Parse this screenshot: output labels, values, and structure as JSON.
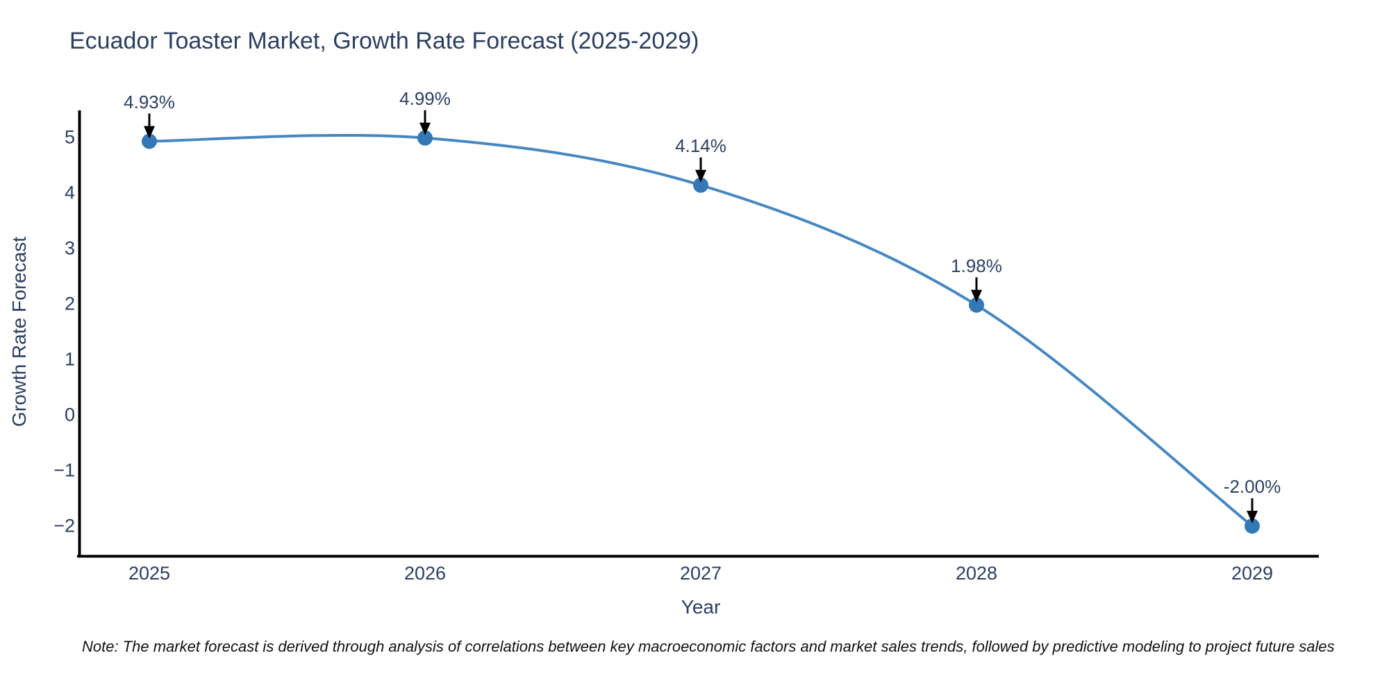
{
  "header": {
    "title": "Ecuador Toaster Market, Growth Rate Forecast (2025-2029)"
  },
  "footer": {
    "note": "Note: The market forecast is derived through analysis of correlations between key macroeconomic factors and market sales trends, followed by predictive modeling to project future sales"
  },
  "chart_data": {
    "type": "line",
    "title": "Ecuador Toaster Market, Growth Rate Forecast (2025-2029)",
    "xlabel": "Year",
    "ylabel": "Growth Rate Forecast",
    "x": [
      2025,
      2026,
      2027,
      2028,
      2029
    ],
    "series": [
      {
        "name": "Growth Rate Forecast",
        "values": [
          4.93,
          4.99,
          4.14,
          1.98,
          -2.0
        ]
      }
    ],
    "point_labels": [
      "4.93%",
      "4.99%",
      "4.14%",
      "1.98%",
      "-2.00%"
    ],
    "xtick_labels": [
      "2025",
      "2026",
      "2027",
      "2028",
      "2029"
    ],
    "ytick_values": [
      5,
      4,
      3,
      2,
      1,
      0,
      -1,
      -2
    ],
    "ytick_labels": [
      "5",
      "4",
      "3",
      "2",
      "1",
      "0",
      "−1",
      "−2"
    ],
    "ylim": [
      -2.55,
      5.5
    ],
    "xlim": [
      2024.74,
      2029.25
    ],
    "grid": false,
    "legend": "none",
    "line_shape": "spline",
    "annotations": "value labels with downward arrows above each data point",
    "colors": {
      "line": "#4787c0",
      "marker": "#3478b5",
      "arrow": "#000000",
      "axis": "#000000",
      "label_text": "#2a3f5f",
      "note_text": "#111111"
    }
  }
}
